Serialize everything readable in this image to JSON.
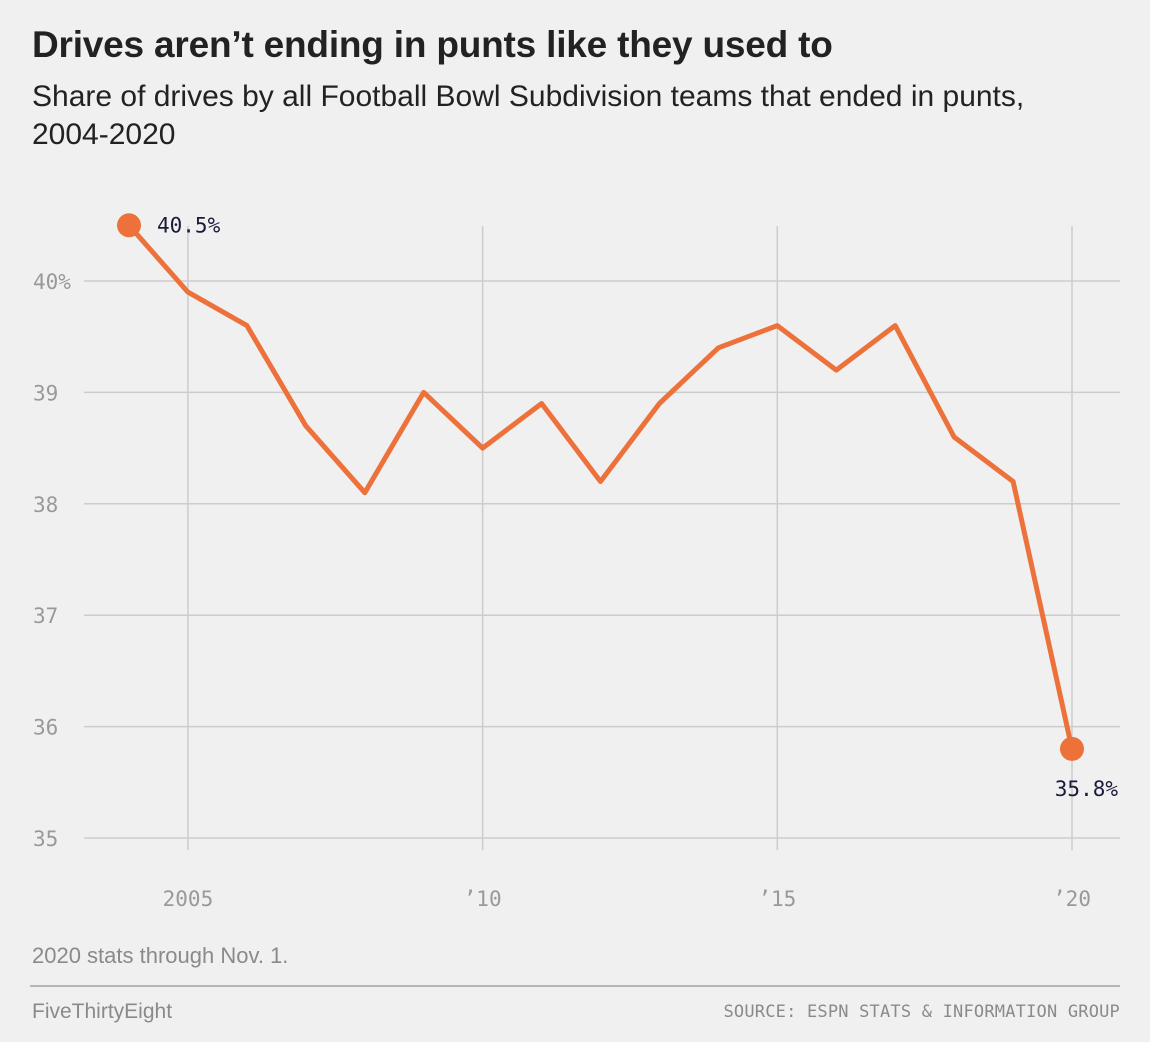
{
  "title": "Drives aren’t ending in punts like they used to",
  "subtitle": "Share of drives by all Football Bowl Subdivision teams that ended in punts, 2004-2020",
  "note": "2020 stats through Nov. 1.",
  "brand": "FiveThirtyEight",
  "source": "SOURCE: ESPN STATS & INFORMATION GROUP",
  "colors": {
    "line": "#ed713a",
    "grid": "#cccccc",
    "background": "#f0f0f0"
  },
  "chart_data": {
    "type": "line",
    "x": [
      2004,
      2005,
      2006,
      2007,
      2008,
      2009,
      2010,
      2011,
      2012,
      2013,
      2014,
      2015,
      2016,
      2017,
      2018,
      2019,
      2020
    ],
    "series": [
      {
        "values": [
          40.5,
          39.9,
          39.6,
          38.7,
          38.1,
          39.0,
          38.5,
          38.9,
          38.2,
          38.9,
          39.4,
          39.6,
          39.2,
          39.6,
          38.6,
          38.2,
          35.8
        ]
      }
    ],
    "xlim": [
      2004,
      2020
    ],
    "ylim": [
      35,
      40.5
    ],
    "xticks": [
      {
        "value": 2005,
        "label": "2005"
      },
      {
        "value": 2010,
        "label": "’10"
      },
      {
        "value": 2015,
        "label": "’15"
      },
      {
        "value": 2020,
        "label": "’20"
      }
    ],
    "yticks": [
      {
        "value": 40,
        "label": "40%"
      },
      {
        "value": 39,
        "label": "39"
      },
      {
        "value": 38,
        "label": "38"
      },
      {
        "value": 37,
        "label": "37"
      },
      {
        "value": 36,
        "label": "36"
      },
      {
        "value": 35,
        "label": "35"
      }
    ],
    "annotations": [
      {
        "x": 2004,
        "y": 40.5,
        "text": "40.5%",
        "position": "right"
      },
      {
        "x": 2020,
        "y": 35.8,
        "text": "35.8%",
        "position": "below-left"
      }
    ],
    "grid": true,
    "xlabel": "",
    "ylabel": ""
  }
}
